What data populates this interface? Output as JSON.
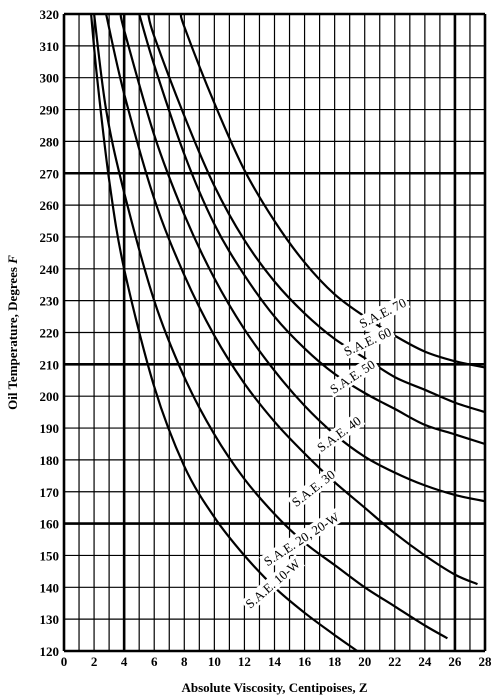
{
  "chart_data": {
    "type": "line",
    "title": "",
    "xlabel": "Absolute Viscosity, Centipoises, Z",
    "ylabel": "Oil Temperature, Degrees F",
    "xlim": [
      0,
      28
    ],
    "ylim": [
      120,
      320
    ],
    "x_ticks": [
      0,
      2,
      4,
      6,
      8,
      10,
      12,
      14,
      16,
      18,
      20,
      22,
      24,
      26,
      28
    ],
    "y_ticks": [
      120,
      130,
      140,
      150,
      160,
      170,
      180,
      190,
      200,
      210,
      220,
      230,
      240,
      250,
      260,
      270,
      280,
      290,
      300,
      310,
      320
    ],
    "major_x_gridlines": [
      4,
      26
    ],
    "major_y_gridlines": [
      160,
      210,
      270
    ],
    "grid": true,
    "legend": "none",
    "series": [
      {
        "name": "S.A.E. 10-W",
        "x": [
          1.8,
          2.2,
          3.0,
          4.0,
          6.0,
          8.0,
          10.0,
          12.0,
          14.0,
          16.0,
          18.0,
          19.5
        ],
        "y": [
          320,
          300,
          268,
          240,
          203,
          178,
          162,
          150,
          140,
          132,
          125,
          120
        ]
      },
      {
        "name": "S.A.E. 20, 20-W",
        "x": [
          2.0,
          2.8,
          4.0,
          6.0,
          8.0,
          10.0,
          12.0,
          14.0,
          16.0,
          18.0,
          20.0,
          22.0,
          24.0,
          25.5
        ],
        "y": [
          320,
          290,
          264,
          230,
          206,
          188,
          174,
          163,
          154,
          147,
          140,
          134,
          128,
          124
        ]
      },
      {
        "name": "S.A.E. 30",
        "x": [
          2.8,
          4.0,
          6.0,
          8.0,
          10.0,
          12.0,
          14.0,
          16.0,
          18.0,
          20.0,
          22.0,
          24.0,
          26.0,
          27.5
        ],
        "y": [
          320,
          295,
          262,
          238,
          219,
          204,
          192,
          182,
          173,
          165,
          157,
          150,
          144,
          141
        ]
      },
      {
        "name": "S.A.E. 40",
        "x": [
          3.8,
          4.0,
          6.0,
          8.0,
          10.0,
          12.0,
          14.0,
          16.0,
          18.0,
          20.0,
          22.0,
          24.0,
          26.0,
          28.0
        ],
        "y": [
          320,
          315,
          282,
          257,
          237,
          221,
          208,
          197,
          188,
          181,
          176,
          172,
          169,
          167
        ]
      },
      {
        "name": "S.A.E. 50",
        "x": [
          5.0,
          6.0,
          8.0,
          10.0,
          12.0,
          14.0,
          16.0,
          18.0,
          20.0,
          22.0,
          24.0,
          26.0,
          28.0
        ],
        "y": [
          320,
          304,
          276,
          254,
          238,
          225,
          215,
          207,
          201,
          196,
          191,
          188,
          185
        ]
      },
      {
        "name": "S.A.E. 60",
        "x": [
          5.6,
          6.0,
          8.0,
          10.0,
          12.0,
          14.0,
          16.0,
          18.0,
          20.0,
          22.0,
          24.0,
          26.0,
          28.0
        ],
        "y": [
          320,
          313,
          288,
          266,
          249,
          236,
          226,
          218,
          212,
          206,
          202,
          198,
          195
        ]
      },
      {
        "name": "S.A.E. 70",
        "x": [
          7.8,
          8.0,
          10.0,
          12.0,
          14.0,
          16.0,
          18.0,
          20.0,
          22.0,
          24.0,
          26.0,
          28.0
        ],
        "y": [
          320,
          316,
          292,
          271,
          255,
          242,
          232,
          225,
          219,
          214,
          211,
          209
        ]
      }
    ],
    "curve_labels": [
      {
        "text": "S.A.E. 70",
        "x": 21.2,
        "y": 226,
        "angle": -27
      },
      {
        "text": "S.A.E. 60",
        "x": 20.2,
        "y": 217,
        "angle": -25
      },
      {
        "text": "S.A.E. 50",
        "x": 19.2,
        "y": 206,
        "angle": -33
      },
      {
        "text": "S.A.E. 40",
        "x": 18.3,
        "y": 188,
        "angle": -36
      },
      {
        "text": "S.A.E. 30",
        "x": 16.6,
        "y": 171,
        "angle": -38
      },
      {
        "text": "S.A.E. 20, 20-W",
        "x": 15.8,
        "y": 155,
        "angle": -33
      },
      {
        "text": "S.A.E. 10-W",
        "x": 13.9,
        "y": 141,
        "angle": -41
      }
    ]
  }
}
